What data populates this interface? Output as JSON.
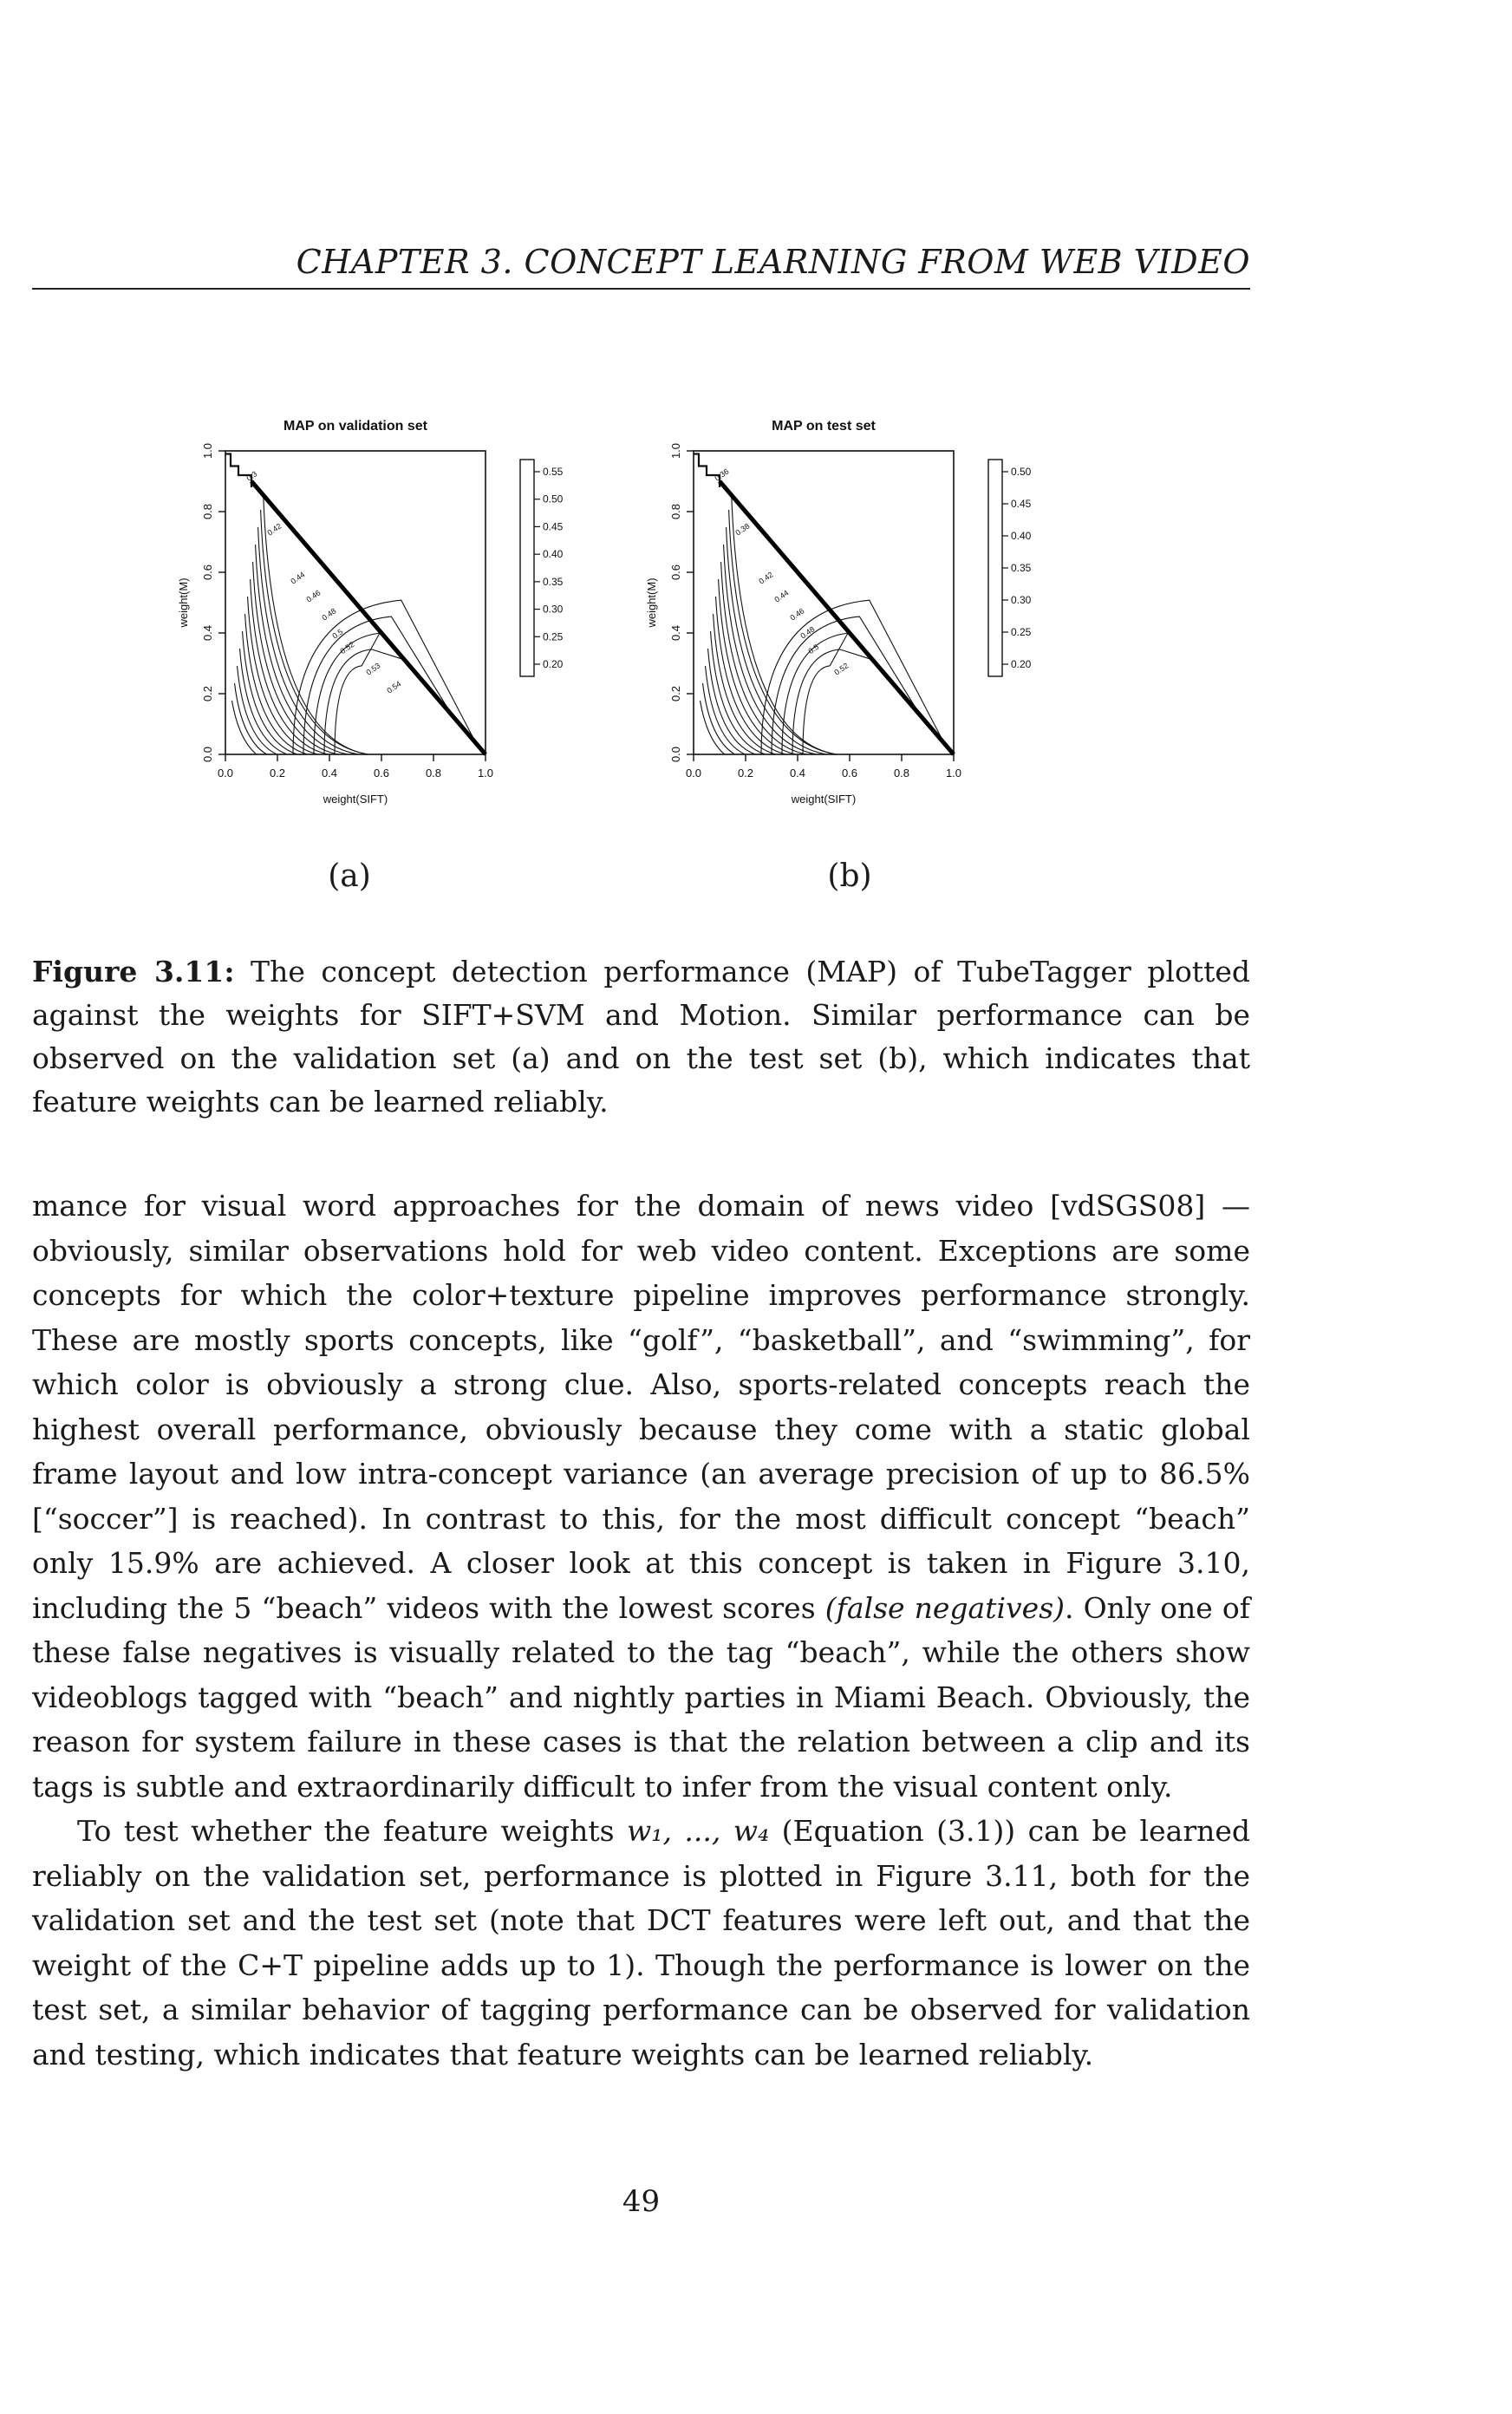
{
  "header": {
    "running_title": "CHAPTER 3.  CONCEPT LEARNING FROM WEB VIDEO"
  },
  "figure": {
    "panels": [
      {
        "label": "(a)",
        "chart_data": {
          "type": "contour",
          "title": "MAP on validation set",
          "xlabel": "weight(SIFT)",
          "ylabel": "weight(M)",
          "xlim": [
            0,
            1
          ],
          "ylim": [
            0,
            1
          ],
          "x_ticks": [
            "0.0",
            "0.2",
            "0.4",
            "0.6",
            "0.8",
            "1.0"
          ],
          "y_ticks": [
            "0.0",
            "0.2",
            "0.4",
            "0.6",
            "0.8",
            "1.0"
          ],
          "contour_labels": [
            "0.3",
            "0.42",
            "0.44",
            "0.46",
            "0.48",
            "0.5",
            "0.52",
            "0.53",
            "0.54"
          ],
          "colorbar_ticks": [
            "0.55",
            "0.50",
            "0.45",
            "0.40",
            "0.35",
            "0.30",
            "0.25",
            "0.20"
          ],
          "colorbar_range": [
            0.2,
            0.55
          ],
          "feasible_region": "weight(SIFT) + weight(M) <= 1"
        }
      },
      {
        "label": "(b)",
        "chart_data": {
          "type": "contour",
          "title": "MAP on test set",
          "xlabel": "weight(SIFT)",
          "ylabel": "weight(M)",
          "xlim": [
            0,
            1
          ],
          "ylim": [
            0,
            1
          ],
          "x_ticks": [
            "0.0",
            "0.2",
            "0.4",
            "0.6",
            "0.8",
            "1.0"
          ],
          "y_ticks": [
            "0.0",
            "0.2",
            "0.4",
            "0.6",
            "0.8",
            "1.0"
          ],
          "contour_labels": [
            "0.36",
            "0.38",
            "0.42",
            "0.44",
            "0.46",
            "0.48",
            "0.5",
            "0.52"
          ],
          "colorbar_ticks": [
            "0.50",
            "0.45",
            "0.40",
            "0.35",
            "0.30",
            "0.25",
            "0.20"
          ],
          "colorbar_range": [
            0.2,
            0.52
          ],
          "feasible_region": "weight(SIFT) + weight(M) <= 1"
        }
      }
    ],
    "caption_label": "Figure 3.11:",
    "caption_text": " The concept detection performance (MAP) of TubeTagger plotted against the weights for SIFT+SVM and Motion. Similar performance can be observed on the validation set (a) and on the test set (b), which indicates that feature weights can be learned reliably."
  },
  "body": {
    "para1": "mance for visual word approaches for the domain of news video [vdSGS08] — obviously, similar observations hold for web video content. Exceptions are some concepts for which the color+texture pipeline improves performance strongly. These are mostly sports concepts, like “golf”, “basketball”, and “swimming”, for which color is obviously a strong clue. Also, sports-related concepts reach the highest overall performance, obviously because they come with a static global frame layout and low intra-concept variance (an average precision of up to 86.5% [“soccer”] is reached). In contrast to this, for the most difficult concept “beach” only 15.9% are achieved. A closer look at this concept is taken in Figure 3.10, including the 5 “beach” videos with the lowest scores ",
    "para1_em": "(false negatives)",
    "para1_end": ". Only one of these false negatives is visually related to the tag “beach”, while the others show videoblogs tagged with “beach” and nightly parties in Miami Beach. Obviously, the reason for system failure in these cases is that the relation between a clip and its tags is subtle and extraordinarily difficult to infer from the visual content only.",
    "para2_a": "To test whether the feature weights ",
    "para2_math": "w₁, ..., w₄",
    "para2_b": " (Equation (3.1)) can be learned reliably on the validation set, performance is plotted in Figure 3.11, both for the validation set and the test set (note that DCT features were left out, and that the weight of the C+T pipeline adds up to 1). Though the performance is lower on the test set, a similar behavior of tagging performance can be observed for validation and testing, which indicates that feature weights can be learned reliably."
  },
  "page_number": "49"
}
